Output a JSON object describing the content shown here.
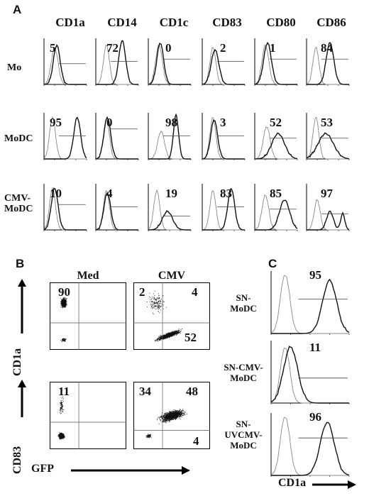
{
  "figure": {
    "panel_a": {
      "letter": "A",
      "columns": [
        "CD1a",
        "CD14",
        "CD1c",
        "CD83",
        "CD80",
        "CD86"
      ],
      "rows": [
        {
          "label": [
            "Mo"
          ],
          "values": [
            "5",
            "72",
            "0",
            "2",
            "1",
            "84"
          ]
        },
        {
          "label": [
            "MoDC"
          ],
          "values": [
            "95",
            "0",
            "98",
            "3",
            "52",
            "53"
          ]
        },
        {
          "label": [
            "CMV-",
            "MoDC"
          ],
          "values": [
            "10",
            "4",
            "19",
            "83",
            "85",
            "97"
          ]
        }
      ]
    },
    "panel_b": {
      "letter": "B",
      "conditions": [
        "Med",
        "CMV"
      ],
      "y_labels": [
        "CD1a",
        "CD83"
      ],
      "x_label": "GFP",
      "quadrants": {
        "cd1a_med": [
          "90"
        ],
        "cd1a_cmv": [
          "2",
          "4",
          "52"
        ],
        "cd83_med": [
          "11"
        ],
        "cd83_cmv": [
          "34",
          "48",
          "4"
        ]
      }
    },
    "panel_c": {
      "letter": "C",
      "samples": [
        {
          "label": [
            "SN-",
            "MoDC"
          ],
          "value": "95"
        },
        {
          "label": [
            "SN-CMV-",
            "MoDC"
          ],
          "value": "11"
        },
        {
          "label": [
            "SN-",
            "UVCMV-",
            "MoDC"
          ],
          "value": "96"
        }
      ],
      "x_label": "CD1a"
    }
  }
}
